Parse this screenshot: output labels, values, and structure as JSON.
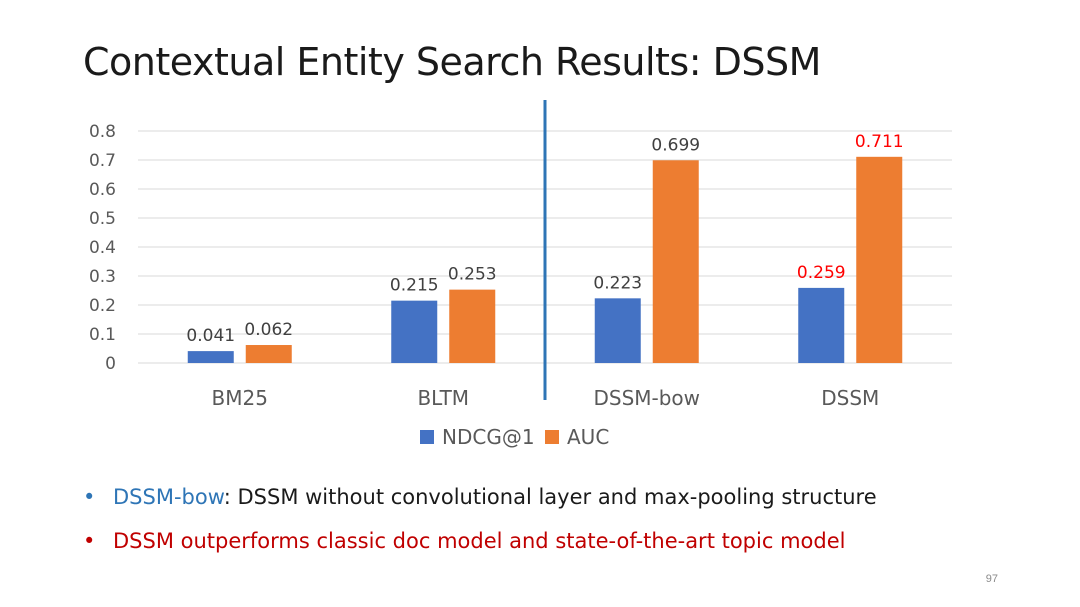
{
  "slide": {
    "title": "Contextual Entity Search Results: DSSM",
    "page_number": "97"
  },
  "bullets": [
    {
      "keyword": "DSSM-bow",
      "text": ": DSSM without convolutional layer and max-pooling structure",
      "keyword_color": "#2e75b6"
    },
    {
      "text": "DSSM outperforms classic doc model and state-of-the-art topic model",
      "color": "#c00000"
    }
  ],
  "chart_data": {
    "type": "bar",
    "categories": [
      "BM25",
      "BLTM",
      "DSSM-bow",
      "DSSM"
    ],
    "series": [
      {
        "name": "NDCG@1",
        "values": [
          0.041,
          0.215,
          0.223,
          0.259
        ],
        "color": "#4472c4",
        "labels": [
          "0.041",
          "0.215",
          "0.223",
          "0.259"
        ],
        "label_colors": [
          "#404040",
          "#404040",
          "#404040",
          "#ff0000"
        ]
      },
      {
        "name": "AUC",
        "values": [
          0.062,
          0.253,
          0.699,
          0.711
        ],
        "color": "#ed7d31",
        "labels": [
          "0.062",
          "0.253",
          "0.699",
          "0.711"
        ],
        "label_colors": [
          "#404040",
          "#404040",
          "#404040",
          "#ff0000"
        ]
      }
    ],
    "ylim": [
      0,
      0.8
    ],
    "yticks": [
      "0",
      "0.1",
      "0.2",
      "0.3",
      "0.4",
      "0.5",
      "0.6",
      "0.7",
      "0.8"
    ],
    "grid": true,
    "legend_position": "bottom",
    "divider_after_category": "BLTM",
    "divider_color": "#2e75b6"
  }
}
